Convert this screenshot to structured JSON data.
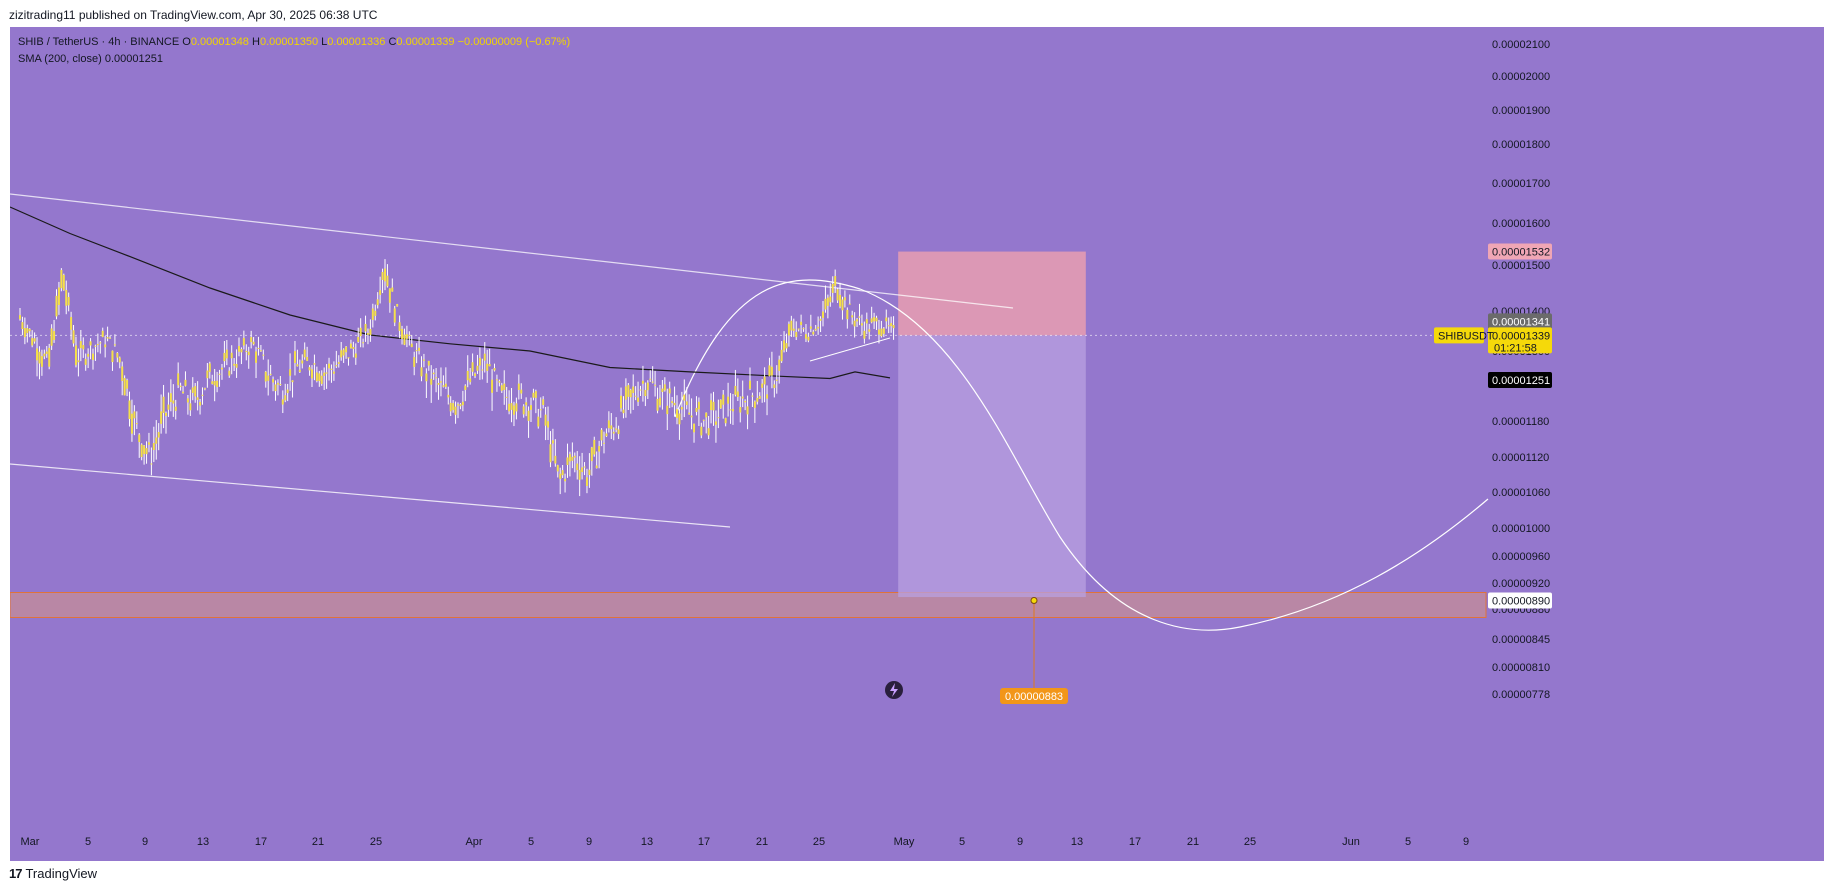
{
  "header": {
    "publish_text": "zizitrading11 published on TradingView.com, Apr 30, 2025 06:38 UTC"
  },
  "legend": {
    "symbol": "SHIB / TetherUS · 4h · BINANCE",
    "o_label": "O",
    "o_value": "0.00001348",
    "h_label": "H",
    "h_value": "0.00001350",
    "l_label": "L",
    "l_value": "0.00001336",
    "c_label": "C",
    "c_value": "0.00001339",
    "change": "−0.00000009 (−0.67%)",
    "sma_label": "SMA (200, close)",
    "sma_value": "0.00001251"
  },
  "footer": {
    "brand": "TradingView",
    "logo_icon": "tradingview-logo-icon"
  },
  "colors": {
    "background": "#9477cd",
    "candle": "#f5e04a",
    "candle_wick": "#ffffff",
    "sma": "#1a1a1a",
    "stop_zone": "#e39bb3",
    "target_zone": "#b9a0e0",
    "support_zone": "#c08a9e",
    "price_label": "#f5d90a",
    "target_label": "#f29619"
  },
  "chart_data": {
    "type": "candlestick",
    "timeframe": "4h",
    "y_axis_ticks": [
      "0.00002100",
      "0.00002000",
      "0.00001900",
      "0.00001800",
      "0.00001700",
      "0.00001600",
      "0.00001500",
      "0.00001400",
      "0.00001300",
      "0.00001240",
      "0.00001180",
      "0.00001120",
      "0.00001060",
      "0.00001000",
      "0.00000960",
      "0.00000920",
      "0.00000880",
      "0.00000845",
      "0.00000810",
      "0.00000778"
    ],
    "x_axis_ticks": [
      "Mar",
      "5",
      "9",
      "13",
      "17",
      "21",
      "25",
      "Apr",
      "5",
      "9",
      "13",
      "17",
      "21",
      "25",
      "May",
      "5",
      "9",
      "13",
      "17",
      "21",
      "25",
      "Jun",
      "5",
      "9"
    ],
    "close_path": [
      [
        "2025-03-01",
        1.39e-05
      ],
      [
        "2025-03-02",
        1.33e-05
      ],
      [
        "2025-03-03",
        1.27e-05
      ],
      [
        "2025-03-04",
        1.48e-05
      ],
      [
        "2025-03-05",
        1.29e-05
      ],
      [
        "2025-03-06",
        1.31e-05
      ],
      [
        "2025-03-07",
        1.33e-05
      ],
      [
        "2025-03-08",
        1.28e-05
      ],
      [
        "2025-03-09",
        1.17e-05
      ],
      [
        "2025-03-10",
        1.12e-05
      ],
      [
        "2025-03-11",
        1.19e-05
      ],
      [
        "2025-03-12",
        1.23e-05
      ],
      [
        "2025-03-13",
        1.21e-05
      ],
      [
        "2025-03-14",
        1.25e-05
      ],
      [
        "2025-03-15",
        1.27e-05
      ],
      [
        "2025-03-16",
        1.29e-05
      ],
      [
        "2025-03-17",
        1.32e-05
      ],
      [
        "2025-03-18",
        1.26e-05
      ],
      [
        "2025-03-19",
        1.23e-05
      ],
      [
        "2025-03-20",
        1.27e-05
      ],
      [
        "2025-03-21",
        1.28e-05
      ],
      [
        "2025-03-22",
        1.26e-05
      ],
      [
        "2025-03-23",
        1.28e-05
      ],
      [
        "2025-03-24",
        1.31e-05
      ],
      [
        "2025-03-25",
        1.35e-05
      ],
      [
        "2025-03-26",
        1.5e-05
      ],
      [
        "2025-03-27",
        1.38e-05
      ],
      [
        "2025-03-28",
        1.3e-05
      ],
      [
        "2025-03-29",
        1.26e-05
      ],
      [
        "2025-03-30",
        1.23e-05
      ],
      [
        "2025-03-31",
        1.21e-05
      ],
      [
        "2025-04-01",
        1.25e-05
      ],
      [
        "2025-04-02",
        1.28e-05
      ],
      [
        "2025-04-03",
        1.22e-05
      ],
      [
        "2025-04-04",
        1.22e-05
      ],
      [
        "2025-04-05",
        1.21e-05
      ],
      [
        "2025-04-06",
        1.19e-05
      ],
      [
        "2025-04-07",
        1.08e-05
      ],
      [
        "2025-04-08",
        1.12e-05
      ],
      [
        "2025-04-09",
        1.09e-05
      ],
      [
        "2025-04-10",
        1.15e-05
      ],
      [
        "2025-04-11",
        1.18e-05
      ],
      [
        "2025-04-12",
        1.22e-05
      ],
      [
        "2025-04-13",
        1.25e-05
      ],
      [
        "2025-04-14",
        1.22e-05
      ],
      [
        "2025-04-15",
        1.21e-05
      ],
      [
        "2025-04-16",
        1.19e-05
      ],
      [
        "2025-04-17",
        1.18e-05
      ],
      [
        "2025-04-18",
        1.19e-05
      ],
      [
        "2025-04-19",
        1.21e-05
      ],
      [
        "2025-04-20",
        1.22e-05
      ],
      [
        "2025-04-21",
        1.23e-05
      ],
      [
        "2025-04-22",
        1.26e-05
      ],
      [
        "2025-04-23",
        1.36e-05
      ],
      [
        "2025-04-24",
        1.35e-05
      ],
      [
        "2025-04-25",
        1.38e-05
      ],
      [
        "2025-04-26",
        1.46e-05
      ],
      [
        "2025-04-27",
        1.39e-05
      ],
      [
        "2025-04-28",
        1.36e-05
      ],
      [
        "2025-04-29",
        1.37e-05
      ],
      [
        "2025-04-30",
        1.339e-05
      ]
    ],
    "sma_200_last": 1.251e-05,
    "annotations": {
      "current_price": "0.00001339",
      "countdown": "01:21:58",
      "symbol_tag": "SHIBUSDT",
      "last_price_label": "0.00001341",
      "sma_label": "0.00001251",
      "stop_level": "0.00001532",
      "entry_level": 1.339e-05,
      "support_label": "0.00000890",
      "target_label": "0.00000883"
    }
  }
}
